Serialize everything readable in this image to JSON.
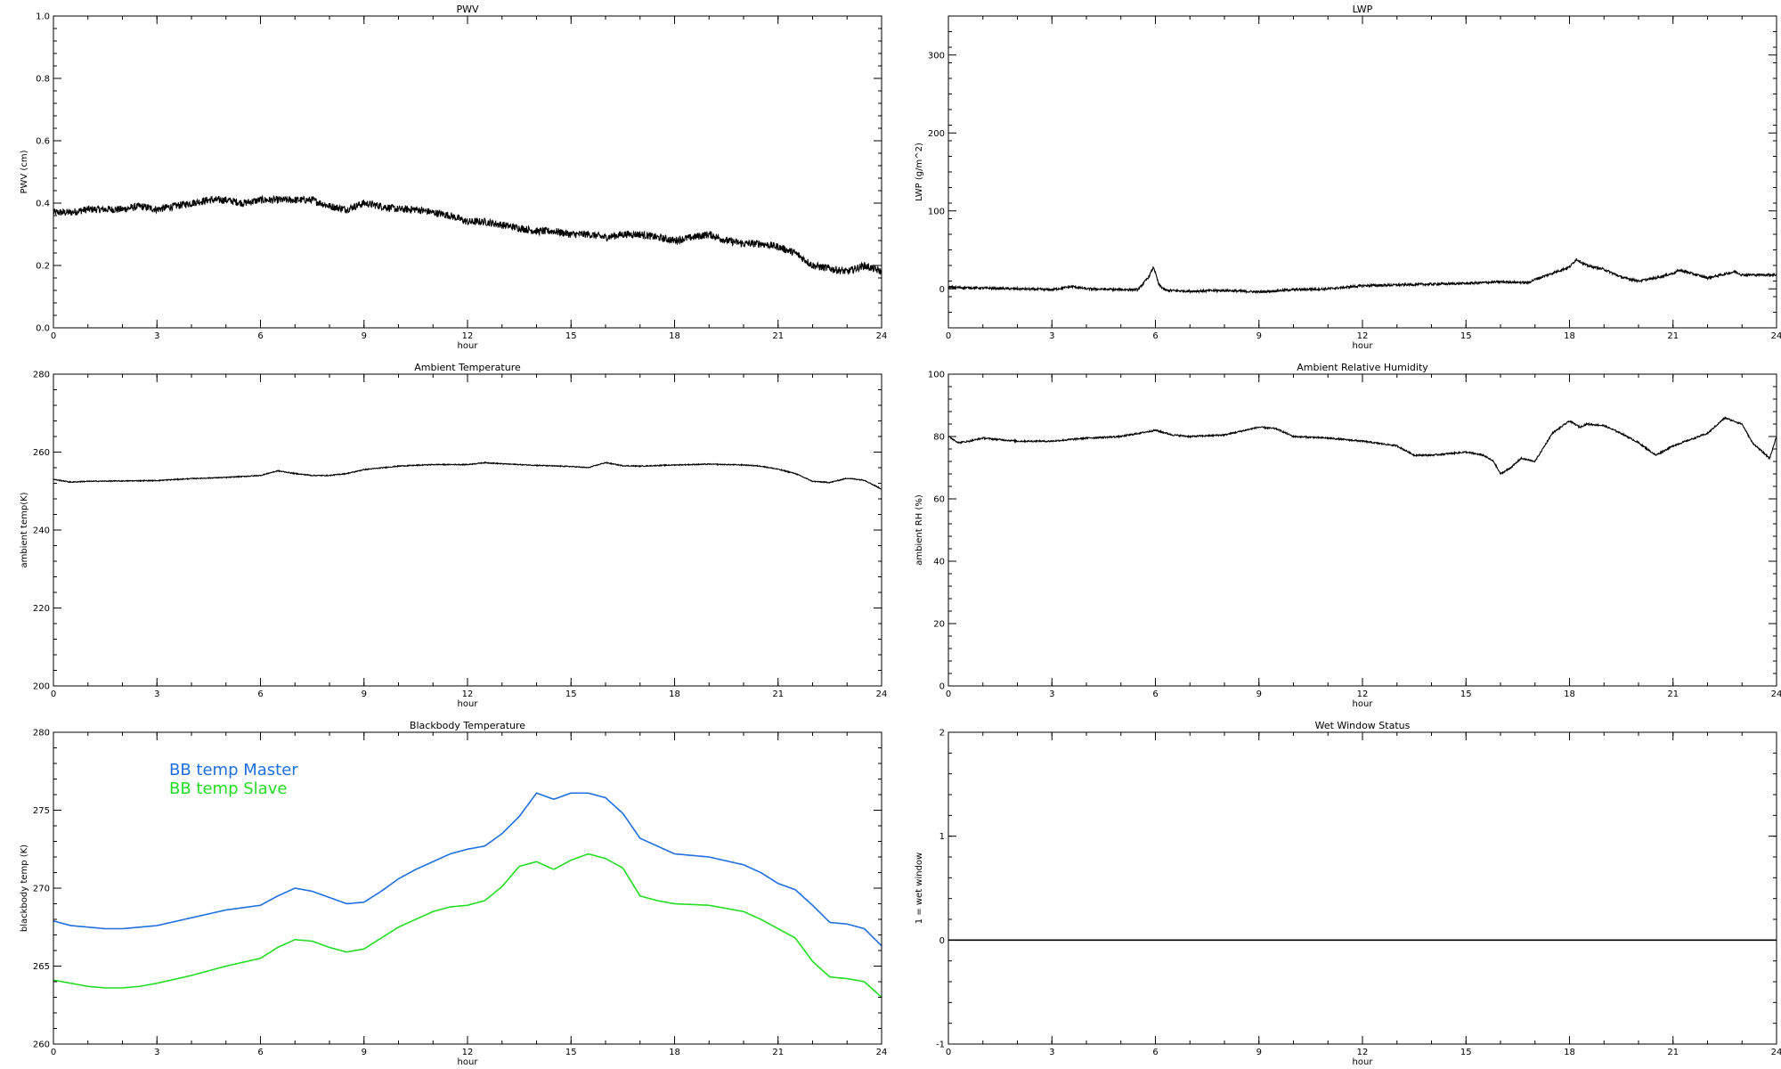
{
  "chart_data": [
    {
      "id": "pwv",
      "type": "line",
      "title": "PWV",
      "xlabel": "hour",
      "ylabel": "PWV (cm)",
      "xlim": [
        0,
        24
      ],
      "ylim": [
        0,
        1.0
      ],
      "xticks": [
        0,
        3,
        6,
        9,
        12,
        15,
        18,
        21,
        24
      ],
      "yticks": [
        0,
        0.2,
        0.4,
        0.6,
        0.8,
        1.0
      ],
      "ytick_labels": [
        "0.0",
        "0.2",
        "0.4",
        "0.6",
        "0.8",
        "1.0"
      ],
      "grid": false,
      "noise": 0.012,
      "series": [
        {
          "color": "#000000",
          "x": [
            0,
            0.5,
            1,
            1.5,
            2,
            2.5,
            3,
            3.5,
            4,
            4.5,
            5,
            5.5,
            6,
            6.5,
            7,
            7.5,
            8,
            8.5,
            9,
            9.5,
            10,
            10.5,
            11,
            11.5,
            12,
            12.5,
            13,
            13.5,
            14,
            14.5,
            15,
            15.5,
            16,
            16.5,
            17,
            17.5,
            18,
            18.5,
            19,
            19.5,
            20,
            20.5,
            21,
            21.5,
            22,
            22.5,
            23,
            23.5,
            24
          ],
          "y": [
            0.37,
            0.37,
            0.38,
            0.38,
            0.38,
            0.39,
            0.38,
            0.39,
            0.4,
            0.41,
            0.41,
            0.4,
            0.41,
            0.41,
            0.41,
            0.41,
            0.39,
            0.38,
            0.4,
            0.39,
            0.38,
            0.38,
            0.37,
            0.36,
            0.34,
            0.34,
            0.33,
            0.32,
            0.31,
            0.31,
            0.3,
            0.3,
            0.29,
            0.3,
            0.3,
            0.29,
            0.28,
            0.29,
            0.3,
            0.28,
            0.27,
            0.27,
            0.26,
            0.24,
            0.2,
            0.19,
            0.18,
            0.2,
            0.18
          ]
        }
      ]
    },
    {
      "id": "lwp",
      "type": "line",
      "title": "LWP",
      "xlabel": "hour",
      "ylabel": "LWP (g/m^2)",
      "xlim": [
        0,
        24
      ],
      "ylim": [
        -50,
        350
      ],
      "xticks": [
        0,
        3,
        6,
        9,
        12,
        15,
        18,
        21,
        24
      ],
      "yticks": [
        0,
        100,
        200,
        300
      ],
      "ytick_labels": [
        "0",
        "100",
        "200",
        "300"
      ],
      "grid": false,
      "noise": 1.5,
      "series": [
        {
          "color": "#000000",
          "x": [
            0,
            1,
            2,
            3,
            3.6,
            4,
            5,
            5.5,
            5.8,
            5.95,
            6.1,
            6.3,
            7,
            8,
            9,
            10,
            11,
            12,
            13,
            14,
            15,
            16,
            16.8,
            17,
            17.5,
            18,
            18.2,
            18.5,
            19,
            19.5,
            20,
            20.5,
            21,
            21.2,
            22,
            22.8,
            23,
            24
          ],
          "y": [
            2,
            1,
            0,
            -1,
            3,
            0,
            -1,
            -1,
            15,
            28,
            5,
            -2,
            -3,
            -2,
            -4,
            -1,
            0,
            4,
            5,
            6,
            7,
            9,
            8,
            12,
            20,
            28,
            38,
            30,
            25,
            15,
            10,
            14,
            20,
            24,
            14,
            22,
            18,
            18
          ]
        }
      ]
    },
    {
      "id": "ambient-temp",
      "type": "line",
      "title": "Ambient Temperature",
      "xlabel": "hour",
      "ylabel": "ambient temp(K)",
      "xlim": [
        0,
        24
      ],
      "ylim": [
        200,
        280
      ],
      "xticks": [
        0,
        3,
        6,
        9,
        12,
        15,
        18,
        21,
        24
      ],
      "yticks": [
        200,
        220,
        240,
        260,
        280
      ],
      "ytick_labels": [
        "200",
        "220",
        "240",
        "260",
        "280"
      ],
      "grid": false,
      "noise": 0.12,
      "series": [
        {
          "color": "#000000",
          "x": [
            0,
            0.5,
            1,
            2,
            3,
            4,
            5,
            6,
            6.5,
            7,
            7.5,
            8,
            8.5,
            9,
            10,
            11,
            12,
            12.5,
            13,
            14,
            15,
            15.5,
            16,
            16.5,
            17,
            18,
            19,
            20,
            20.5,
            21,
            21.5,
            22,
            22.5,
            23,
            23.5,
            24
          ],
          "y": [
            253,
            252.3,
            252.5,
            252.6,
            252.7,
            253.2,
            253.5,
            254,
            255.2,
            254.5,
            254,
            254,
            254.5,
            255.5,
            256.4,
            256.8,
            256.8,
            257.3,
            257,
            256.6,
            256.3,
            256,
            257.3,
            256.5,
            256.4,
            256.7,
            256.9,
            256.7,
            256.4,
            255.6,
            254.5,
            252.5,
            252.2,
            253.3,
            252.8,
            250.5
          ]
        }
      ]
    },
    {
      "id": "ambient-rh",
      "type": "line",
      "title": "Ambient Relative Humidity",
      "xlabel": "hour",
      "ylabel": "ambient RH (%)",
      "xlim": [
        0,
        24
      ],
      "ylim": [
        0,
        100
      ],
      "xticks": [
        0,
        3,
        6,
        9,
        12,
        15,
        18,
        21,
        24
      ],
      "yticks": [
        0,
        20,
        40,
        60,
        80,
        100
      ],
      "ytick_labels": [
        "0",
        "20",
        "40",
        "60",
        "80",
        "100"
      ],
      "grid": false,
      "noise": 0.25,
      "series": [
        {
          "color": "#000000",
          "x": [
            0,
            0.3,
            0.6,
            1,
            2,
            3,
            4,
            5,
            6,
            6.5,
            7,
            8,
            9,
            9.5,
            10,
            11,
            12,
            13,
            13.5,
            14,
            15,
            15.5,
            15.8,
            16,
            16.3,
            16.6,
            17,
            17.5,
            18,
            18.3,
            18.5,
            19,
            19.5,
            20,
            20.5,
            21,
            21.5,
            22,
            22.5,
            23,
            23.3,
            23.6,
            23.8,
            24
          ],
          "y": [
            80,
            78,
            78.5,
            79.5,
            78.5,
            78.5,
            79.5,
            80,
            82,
            80.5,
            80,
            80.5,
            83,
            82.5,
            80,
            79.5,
            78.5,
            77,
            74,
            74,
            75,
            74,
            72,
            68,
            70,
            73,
            72,
            81,
            85,
            83,
            84,
            83.5,
            81,
            78,
            74,
            77,
            79,
            81,
            86,
            84,
            78,
            75,
            73,
            80
          ]
        }
      ]
    },
    {
      "id": "blackbody-temp",
      "type": "line",
      "title": "Blackbody Temperature",
      "xlabel": "hour",
      "ylabel": "blackbody temp (K)",
      "xlim": [
        0,
        24
      ],
      "ylim": [
        260,
        280
      ],
      "xticks": [
        0,
        3,
        6,
        9,
        12,
        15,
        18,
        21,
        24
      ],
      "yticks": [
        260,
        265,
        270,
        275,
        280
      ],
      "ytick_labels": [
        "260",
        "265",
        "270",
        "275",
        "280"
      ],
      "grid": false,
      "noise": 0,
      "legend": "top-left",
      "series": [
        {
          "name": "BB temp Master",
          "color": "#1f6fe0",
          "x": [
            0,
            0.5,
            1,
            1.5,
            2,
            2.5,
            3,
            4,
            5,
            6,
            6.5,
            7,
            7.5,
            8,
            8.5,
            9,
            9.5,
            10,
            10.5,
            11,
            11.5,
            12,
            12.5,
            13,
            13.5,
            14,
            14.5,
            15,
            15.5,
            16,
            16.5,
            17,
            17.5,
            18,
            19,
            20,
            20.5,
            21,
            21.5,
            22,
            22.5,
            23,
            23.5,
            24
          ],
          "y": [
            267.9,
            267.6,
            267.5,
            267.4,
            267.4,
            267.5,
            267.6,
            268.1,
            268.6,
            268.9,
            269.5,
            270,
            269.8,
            269.4,
            269,
            269.1,
            269.8,
            270.6,
            271.2,
            271.7,
            272.2,
            272.5,
            272.7,
            273.5,
            274.6,
            276.1,
            275.7,
            276.1,
            276.1,
            275.8,
            274.8,
            273.2,
            272.7,
            272.2,
            272,
            271.5,
            271,
            270.3,
            269.9,
            268.9,
            267.8,
            267.7,
            267.4,
            266.3
          ]
        },
        {
          "name": "BB temp Slave",
          "color": "#22dd22",
          "x": [
            0,
            0.5,
            1,
            1.5,
            2,
            2.5,
            3,
            4,
            5,
            6,
            6.5,
            7,
            7.5,
            8,
            8.5,
            9,
            9.5,
            10,
            10.5,
            11,
            11.5,
            12,
            12.5,
            13,
            13.5,
            14,
            14.5,
            15,
            15.5,
            16,
            16.5,
            17,
            17.5,
            18,
            19,
            20,
            20.5,
            21,
            21.5,
            22,
            22.5,
            23,
            23.5,
            24
          ],
          "y": [
            264.1,
            263.9,
            263.7,
            263.6,
            263.6,
            263.7,
            263.9,
            264.4,
            265,
            265.5,
            266.2,
            266.7,
            266.6,
            266.2,
            265.9,
            266.1,
            266.8,
            267.5,
            268,
            268.5,
            268.8,
            268.9,
            269.2,
            270.1,
            271.4,
            271.7,
            271.2,
            271.8,
            272.2,
            271.9,
            271.3,
            269.5,
            269.2,
            269,
            268.9,
            268.5,
            268,
            267.4,
            266.8,
            265.3,
            264.3,
            264.2,
            264,
            263
          ]
        }
      ]
    },
    {
      "id": "wet-window",
      "type": "line",
      "title": "Wet Window Status",
      "xlabel": "hour",
      "ylabel": "1 = wet window",
      "xlim": [
        0,
        24
      ],
      "ylim": [
        -1,
        2
      ],
      "xticks": [
        0,
        3,
        6,
        9,
        12,
        15,
        18,
        21,
        24
      ],
      "yticks": [
        -1,
        0,
        1,
        2
      ],
      "ytick_labels": [
        "-1",
        "0",
        "1",
        "2"
      ],
      "grid": false,
      "noise": 0,
      "series": [
        {
          "color": "#000000",
          "x": [
            0,
            24
          ],
          "y": [
            0,
            0
          ]
        }
      ]
    }
  ]
}
